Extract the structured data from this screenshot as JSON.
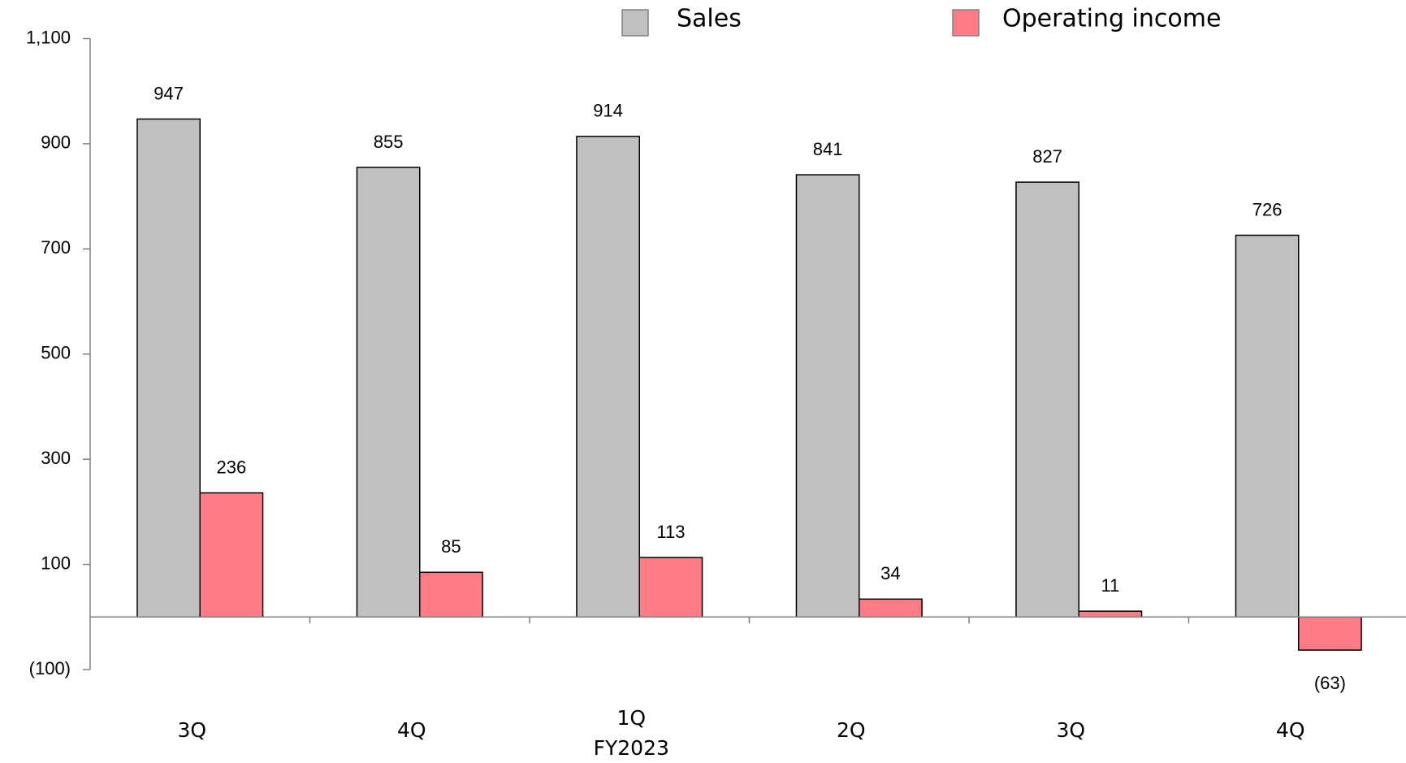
{
  "chart_data": {
    "type": "bar",
    "categories": [
      "3Q",
      "4Q",
      "1Q",
      "2Q",
      "3Q",
      "4Q"
    ],
    "annotations": [
      "FY2023"
    ],
    "series": [
      {
        "name": "Sales",
        "color": "#c0c0c0",
        "values": [
          947,
          855,
          914,
          841,
          827,
          726
        ]
      },
      {
        "name": "Operating income",
        "color": "#ff7b86",
        "values": [
          236,
          85,
          113,
          34,
          11,
          -63
        ],
        "value_labels": [
          "236",
          "85",
          "113",
          "34",
          "11",
          "(63)"
        ]
      }
    ],
    "ylim": [
      -100,
      1100
    ],
    "yticks": [
      {
        "value": 1100,
        "label": "1,100"
      },
      900,
      700,
      500,
      300,
      100,
      {
        "value": -100,
        "label": "(100)"
      }
    ],
    "negative_color": "#e00000",
    "legend": "top"
  }
}
